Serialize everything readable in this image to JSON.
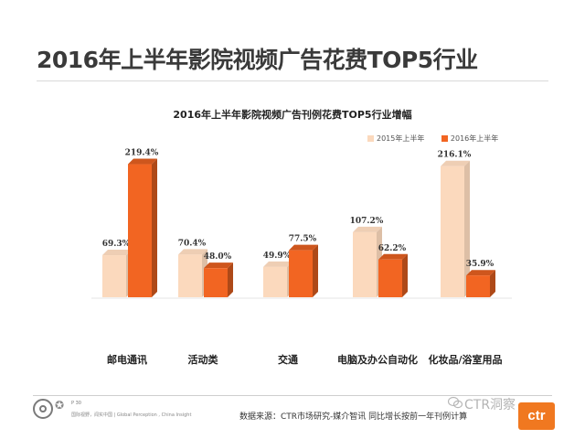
{
  "page": {
    "title": "2016年上半年影院视频广告花费TOP5行业"
  },
  "chart_data": {
    "type": "bar",
    "title": "2016年上半年影院视频广告刊例花费TOP5行业增幅",
    "categories": [
      "邮电通讯",
      "活动类",
      "交通",
      "电脑及办公自动化",
      "化妆品/浴室用品"
    ],
    "series": [
      {
        "name": "2015年上半年",
        "values": [
          69.3,
          70.4,
          49.9,
          107.2,
          216.1
        ],
        "labels": [
          "69.3%",
          "70.4%",
          "49.9%",
          "107.2%",
          "216.1%"
        ],
        "color": "#fbd9bd"
      },
      {
        "name": "2016年上半年",
        "values": [
          219.4,
          48.0,
          77.5,
          62.2,
          35.9
        ],
        "labels": [
          "219.4%",
          "48.0%",
          "77.5%",
          "62.2%",
          "35.9%"
        ],
        "color": "#f26522"
      }
    ],
    "unit": "%",
    "ylim": [
      0,
      240
    ],
    "grid": false,
    "legend": "top-right",
    "style": "3d-column"
  },
  "footer": {
    "page_number": "P 30",
    "tagline": "国际视野，闻实中国 | Global Perception , China Insight",
    "source": "数据来源：CTR市场研究-媒介智讯  同比增长按前一年刊例计算",
    "watermark": "CTR洞察",
    "badge": "ctr",
    "colors": {
      "brand": "#f07820"
    }
  }
}
